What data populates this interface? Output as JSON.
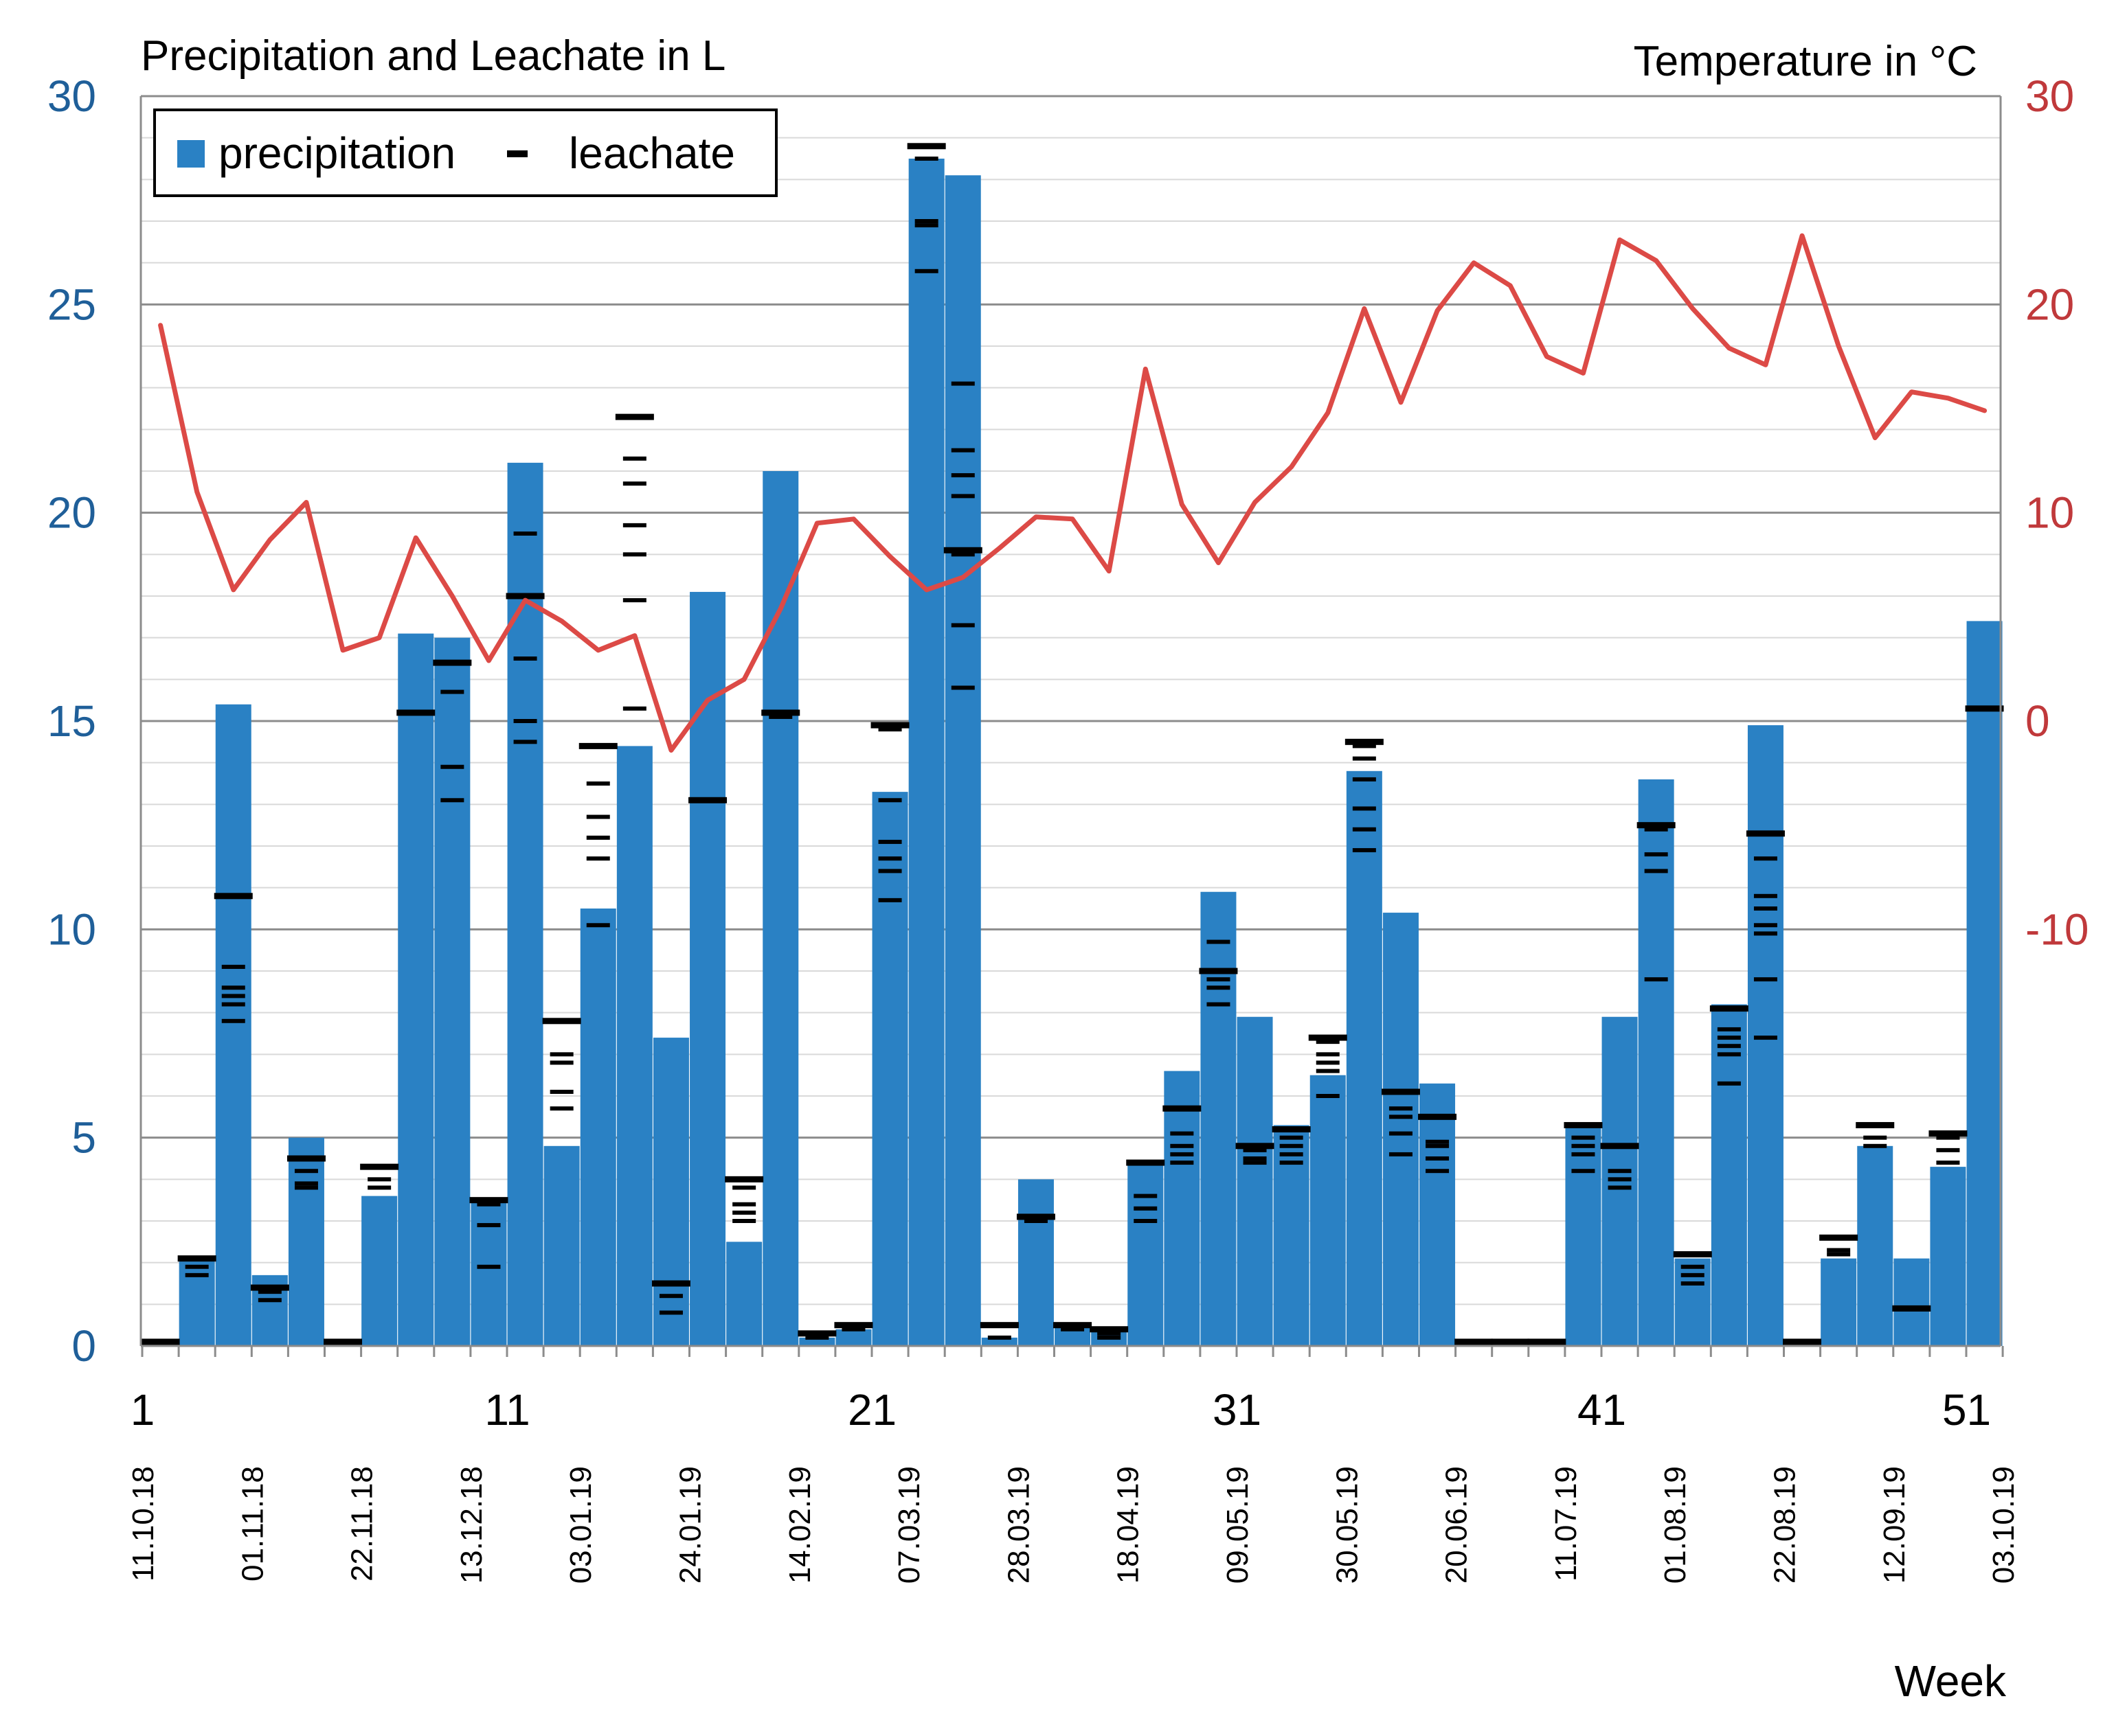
{
  "chart_data": {
    "type": "bar+line",
    "title_left": "Precipitation and Leachate in L",
    "title_right": "Temperature in °C",
    "xlabel": "Week",
    "y_left_range": [
      0,
      30
    ],
    "y_left_ticks": [
      0,
      5,
      10,
      15,
      20,
      25,
      30
    ],
    "y_right_range": [
      -30,
      30
    ],
    "y_right_ticks": [
      30,
      20,
      10,
      0,
      -10
    ],
    "y_right_tick_labels": [
      "30",
      "20",
      "10",
      "0",
      "-10"
    ],
    "x_ticks": [
      1,
      11,
      21,
      31,
      41,
      51
    ],
    "x_tick_labels": [
      "1",
      "11",
      "21",
      "31",
      "41",
      "51"
    ],
    "date_labels": [
      "11.10.18",
      "01.11.18",
      "22.11.18",
      "13.12.18",
      "03.01.19",
      "24.01.19",
      "14.02.19",
      "07.03.19",
      "28.03.19",
      "18.04.19",
      "09.05.19",
      "30.05.19",
      "20.06.19",
      "11.07.19",
      "01.08.19",
      "22.08.19",
      "12.09.19",
      "03.10.19"
    ],
    "date_label_weeks": [
      1,
      4,
      7,
      10,
      13,
      16,
      19,
      22,
      25,
      28,
      31,
      34,
      37,
      40,
      43,
      46,
      49,
      52
    ],
    "grid": true,
    "legend": {
      "position": "top-left",
      "items": [
        "precipitation",
        "leachate"
      ],
      "markers": [
        "▪",
        "−"
      ]
    },
    "colors": {
      "precipitation": "#2a81c4",
      "temperature": "#dc4a46",
      "leachate": "#000000",
      "left_axis": "#1f5f99",
      "right_axis": "#c0393b"
    },
    "series": [
      {
        "name": "precipitation",
        "kind": "bar",
        "axis": "left",
        "values": [
          0,
          2.1,
          15.4,
          1.7,
          5.0,
          0,
          3.6,
          17.1,
          17.0,
          3.5,
          21.2,
          4.8,
          10.5,
          14.4,
          7.4,
          18.1,
          2.5,
          21.0,
          0.2,
          0.4,
          13.3,
          28.5,
          28.1,
          0.2,
          4.0,
          0.5,
          0.4,
          4.4,
          6.6,
          10.9,
          7.9,
          5.3,
          6.5,
          13.8,
          10.4,
          6.3,
          0,
          0,
          0,
          5.3,
          7.9,
          13.6,
          2.1,
          8.2,
          14.9,
          0,
          2.1,
          4.8,
          2.1,
          4.3,
          17.4
        ]
      },
      {
        "name": "leachate",
        "kind": "dash-markers",
        "axis": "left",
        "points": [
          [
            1,
            0.1
          ],
          [
            2,
            2.1
          ],
          [
            2,
            1.9
          ],
          [
            2,
            1.7
          ],
          [
            3,
            10.8
          ],
          [
            3,
            9.1
          ],
          [
            3,
            8.6
          ],
          [
            3,
            8.4
          ],
          [
            3,
            8.2
          ],
          [
            3,
            7.8
          ],
          [
            4,
            1.4
          ],
          [
            4,
            1.3
          ],
          [
            4,
            1.1
          ],
          [
            5,
            4.5
          ],
          [
            5,
            4.2
          ],
          [
            5,
            3.9
          ],
          [
            5,
            3.8
          ],
          [
            6,
            0.1
          ],
          [
            7,
            4.3
          ],
          [
            7,
            4.0
          ],
          [
            7,
            3.8
          ],
          [
            8,
            15.2
          ],
          [
            9,
            16.4
          ],
          [
            9,
            15.7
          ],
          [
            9,
            13.9
          ],
          [
            9,
            13.1
          ],
          [
            10,
            3.5
          ],
          [
            10,
            3.4
          ],
          [
            10,
            2.9
          ],
          [
            10,
            1.9
          ],
          [
            11,
            18.0
          ],
          [
            11,
            19.5
          ],
          [
            11,
            16.5
          ],
          [
            11,
            15.0
          ],
          [
            11,
            14.5
          ],
          [
            12,
            7.8
          ],
          [
            12,
            7.0
          ],
          [
            12,
            6.8
          ],
          [
            12,
            6.1
          ],
          [
            12,
            5.7
          ],
          [
            13,
            14.4
          ],
          [
            13,
            13.5
          ],
          [
            13,
            12.7
          ],
          [
            13,
            12.2
          ],
          [
            13,
            11.7
          ],
          [
            13,
            10.1
          ],
          [
            14,
            22.3
          ],
          [
            14,
            21.3
          ],
          [
            14,
            20.7
          ],
          [
            14,
            19.7
          ],
          [
            14,
            19.0
          ],
          [
            14,
            17.9
          ],
          [
            14,
            15.3
          ],
          [
            15,
            1.5
          ],
          [
            15,
            1.2
          ],
          [
            15,
            0.8
          ],
          [
            16,
            13.1
          ],
          [
            17,
            4.0
          ],
          [
            17,
            3.8
          ],
          [
            17,
            3.4
          ],
          [
            17,
            3.2
          ],
          [
            17,
            3.0
          ],
          [
            18,
            15.2
          ],
          [
            18,
            15.1
          ],
          [
            19,
            0.3
          ],
          [
            19,
            0.2
          ],
          [
            20,
            0.5
          ],
          [
            20,
            0.4
          ],
          [
            21,
            14.9
          ],
          [
            21,
            14.8
          ],
          [
            21,
            13.1
          ],
          [
            21,
            12.1
          ],
          [
            21,
            11.7
          ],
          [
            21,
            11.4
          ],
          [
            21,
            10.7
          ],
          [
            22,
            28.8
          ],
          [
            22,
            28.5
          ],
          [
            22,
            27.0
          ],
          [
            22,
            26.9
          ],
          [
            22,
            25.8
          ],
          [
            23,
            19.1
          ],
          [
            23,
            19.0
          ],
          [
            23,
            23.1
          ],
          [
            23,
            21.5
          ],
          [
            23,
            20.9
          ],
          [
            23,
            20.4
          ],
          [
            23,
            17.3
          ],
          [
            23,
            15.8
          ],
          [
            24,
            0.5
          ],
          [
            24,
            0.2
          ],
          [
            25,
            3.1
          ],
          [
            25,
            3.0
          ],
          [
            26,
            0.5
          ],
          [
            26,
            0.4
          ],
          [
            27,
            0.4
          ],
          [
            27,
            0.3
          ],
          [
            27,
            0.2
          ],
          [
            28,
            4.4
          ],
          [
            28,
            3.6
          ],
          [
            28,
            3.3
          ],
          [
            28,
            3.0
          ],
          [
            29,
            5.7
          ],
          [
            29,
            5.1
          ],
          [
            29,
            4.8
          ],
          [
            29,
            4.6
          ],
          [
            29,
            4.4
          ],
          [
            30,
            9.0
          ],
          [
            30,
            9.0
          ],
          [
            30,
            9.7
          ],
          [
            30,
            8.8
          ],
          [
            30,
            8.6
          ],
          [
            30,
            8.2
          ],
          [
            31,
            4.8
          ],
          [
            31,
            4.7
          ],
          [
            31,
            4.5
          ],
          [
            31,
            4.4
          ],
          [
            32,
            5.2
          ],
          [
            32,
            5.0
          ],
          [
            32,
            4.8
          ],
          [
            32,
            4.6
          ],
          [
            32,
            4.4
          ],
          [
            33,
            7.4
          ],
          [
            33,
            7.3
          ],
          [
            33,
            7.0
          ],
          [
            33,
            6.8
          ],
          [
            33,
            6.6
          ],
          [
            33,
            6.0
          ],
          [
            34,
            14.5
          ],
          [
            34,
            14.4
          ],
          [
            34,
            14.1
          ],
          [
            34,
            13.6
          ],
          [
            34,
            12.9
          ],
          [
            34,
            12.4
          ],
          [
            34,
            11.9
          ],
          [
            35,
            6.1
          ],
          [
            35,
            5.7
          ],
          [
            35,
            5.5
          ],
          [
            35,
            5.1
          ],
          [
            35,
            4.6
          ],
          [
            36,
            5.5
          ],
          [
            36,
            4.9
          ],
          [
            36,
            4.8
          ],
          [
            36,
            4.5
          ],
          [
            36,
            4.2
          ],
          [
            37,
            0.1
          ],
          [
            38,
            0.1
          ],
          [
            39,
            0.1
          ],
          [
            40,
            5.3
          ],
          [
            40,
            5.0
          ],
          [
            40,
            4.8
          ],
          [
            40,
            4.6
          ],
          [
            40,
            4.2
          ],
          [
            41,
            4.8
          ],
          [
            41,
            4.2
          ],
          [
            41,
            4.0
          ],
          [
            41,
            3.8
          ],
          [
            42,
            12.5
          ],
          [
            42,
            12.4
          ],
          [
            42,
            11.8
          ],
          [
            42,
            11.4
          ],
          [
            42,
            8.8
          ],
          [
            43,
            2.2
          ],
          [
            43,
            1.9
          ],
          [
            43,
            1.7
          ],
          [
            43,
            1.5
          ],
          [
            44,
            8.1
          ],
          [
            44,
            7.6
          ],
          [
            44,
            7.4
          ],
          [
            44,
            7.2
          ],
          [
            44,
            7.0
          ],
          [
            44,
            6.3
          ],
          [
            45,
            12.3
          ],
          [
            45,
            11.7
          ],
          [
            45,
            10.8
          ],
          [
            45,
            10.5
          ],
          [
            45,
            10.1
          ],
          [
            45,
            9.9
          ],
          [
            45,
            8.8
          ],
          [
            45,
            7.4
          ],
          [
            46,
            0.1
          ],
          [
            47,
            2.6
          ],
          [
            47,
            2.3
          ],
          [
            47,
            2.2
          ],
          [
            48,
            5.3
          ],
          [
            48,
            5.0
          ],
          [
            48,
            4.8
          ],
          [
            49,
            0.9
          ],
          [
            50,
            5.1
          ],
          [
            50,
            5.0
          ],
          [
            50,
            4.7
          ],
          [
            50,
            4.4
          ],
          [
            51,
            15.3
          ]
        ]
      },
      {
        "name": "temperature",
        "kind": "line",
        "axis": "right",
        "values": [
          19.0,
          11.0,
          6.3,
          8.7,
          10.5,
          3.4,
          4.0,
          8.8,
          6.0,
          2.9,
          5.8,
          4.8,
          3.4,
          4.1,
          -1.4,
          1.0,
          2.0,
          5.4,
          9.5,
          9.7,
          7.9,
          6.3,
          6.9,
          8.3,
          9.8,
          9.7,
          7.2,
          16.9,
          10.4,
          7.6,
          10.5,
          12.2,
          14.8,
          19.8,
          15.3,
          19.7,
          22.0,
          20.9,
          17.5,
          16.7,
          23.1,
          22.1,
          19.8,
          17.9,
          17.1,
          23.3,
          18.0,
          13.6,
          15.8,
          15.5,
          14.9
        ]
      }
    ]
  }
}
